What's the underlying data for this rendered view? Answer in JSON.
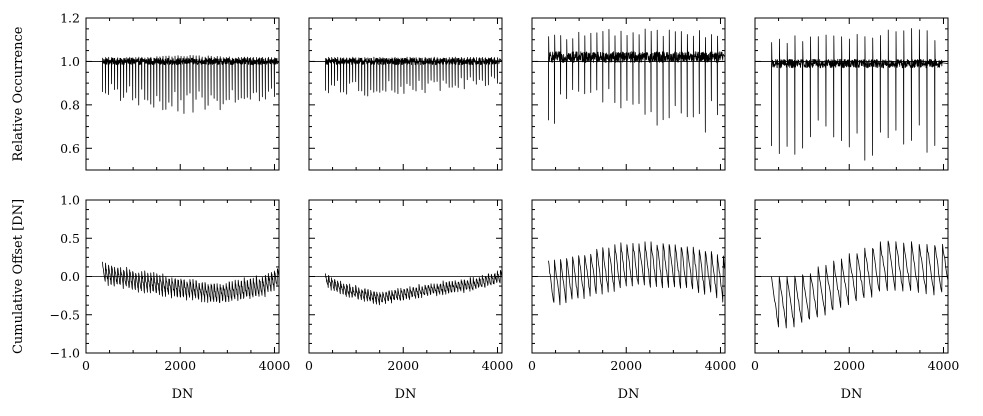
{
  "chart_data": [
    {
      "type": "line",
      "row": 0,
      "col": 0,
      "ylabel": "Relative Occurrence",
      "xlabel": "",
      "xlim": [
        0,
        4096
      ],
      "ylim": [
        0.5,
        1.2
      ],
      "xticks": [
        0,
        2000,
        4000
      ],
      "xticklabels": [],
      "yticks": [
        0.6,
        0.8,
        1.0,
        1.2
      ],
      "yticklabels": [
        "0.6",
        "0.8",
        "1.0",
        "1.2"
      ],
      "reference_y": 1.0,
      "series": [
        {
          "x_start": 350,
          "x_end": 4096,
          "period": 64,
          "baseline": 1.0,
          "noise": 0.015,
          "dip_min": [
            0.84,
            0.79,
            0.75,
            0.79,
            0.84
          ],
          "spike_max": [
            1.02,
            1.02,
            1.03,
            1.02,
            1.02
          ]
        }
      ]
    },
    {
      "type": "line",
      "row": 0,
      "col": 1,
      "ylabel": "",
      "xlabel": "",
      "xlim": [
        0,
        4096
      ],
      "ylim": [
        0.5,
        1.2
      ],
      "xticks": [
        0,
        2000,
        4000
      ],
      "xticklabels": [],
      "yticks": [
        0.6,
        0.8,
        1.0,
        1.2
      ],
      "yticklabels": [],
      "reference_y": 1.0,
      "series": [
        {
          "x_start": 350,
          "x_end": 4096,
          "period": 64,
          "baseline": 1.0,
          "noise": 0.015,
          "dip_min": [
            0.85,
            0.84,
            0.85,
            0.87,
            0.88
          ],
          "spike_max": [
            1.02,
            1.02,
            1.02,
            1.02,
            1.02
          ]
        }
      ]
    },
    {
      "type": "line",
      "row": 0,
      "col": 2,
      "ylabel": "",
      "xlabel": "",
      "xlim": [
        0,
        4096
      ],
      "ylim": [
        0.5,
        1.2
      ],
      "xticks": [
        0,
        2000,
        4000
      ],
      "xticklabels": [],
      "yticks": [
        0.6,
        0.8,
        1.0,
        1.2
      ],
      "yticklabels": [],
      "reference_y": 1.0,
      "series": [
        {
          "x_start": 350,
          "x_end": 4096,
          "period": 128,
          "baseline": 1.02,
          "noise": 0.025,
          "dip_min": [
            0.7,
            0.8,
            0.75,
            0.65,
            0.68
          ],
          "spike_max": [
            1.12,
            1.15,
            1.15,
            1.15,
            1.14
          ]
        }
      ]
    },
    {
      "type": "line",
      "row": 0,
      "col": 3,
      "ylabel": "",
      "xlabel": "",
      "xlim": [
        0,
        4096
      ],
      "ylim": [
        0.5,
        1.2
      ],
      "xticks": [
        0,
        2000,
        4000
      ],
      "xticklabels": [],
      "yticks": [
        0.6,
        0.8,
        1.0,
        1.2
      ],
      "yticklabels": [],
      "reference_y": 1.0,
      "series": [
        {
          "x_start": 350,
          "x_end": 4096,
          "period": 165,
          "baseline": 0.99,
          "noise": 0.02,
          "dip_min": [
            0.58,
            0.54,
            0.53,
            0.55,
            0.6
          ],
          "spike_max": [
            1.1,
            1.15,
            1.15,
            1.17,
            1.12
          ]
        }
      ]
    },
    {
      "type": "line",
      "row": 1,
      "col": 0,
      "ylabel": "Cumulative Offset [DN]",
      "xlabel": "DN",
      "xlim": [
        0,
        4096
      ],
      "ylim": [
        -1.0,
        1.0
      ],
      "xticks": [
        0,
        2000,
        4000
      ],
      "xticklabels": [
        "0",
        "2000",
        "4000"
      ],
      "yticks": [
        -1.0,
        -0.5,
        0.0,
        0.5,
        1.0
      ],
      "yticklabels": [
        "−1.0",
        "−0.5",
        "0.0",
        "0.5",
        "1.0"
      ],
      "reference_y": 0.0,
      "series": [
        {
          "x_start": 350,
          "x_end": 4096,
          "period": 64,
          "noise": 0.03,
          "trend_x": [
            350,
            1000,
            2000,
            2800,
            3800,
            4096
          ],
          "trend_y": [
            0.05,
            -0.05,
            -0.15,
            -0.22,
            -0.12,
            0.0
          ],
          "amplitude": 0.12
        }
      ]
    },
    {
      "type": "line",
      "row": 1,
      "col": 1,
      "ylabel": "",
      "xlabel": "DN",
      "xlim": [
        0,
        4096
      ],
      "ylim": [
        -1.0,
        1.0
      ],
      "xticks": [
        0,
        2000,
        4000
      ],
      "xticklabels": [
        "0",
        "2000",
        "4000"
      ],
      "yticks": [
        -1.0,
        -0.5,
        0.0,
        0.5,
        1.0
      ],
      "yticklabels": [],
      "reference_y": 0.0,
      "series": [
        {
          "x_start": 350,
          "x_end": 4096,
          "period": 64,
          "noise": 0.025,
          "trend_x": [
            350,
            800,
            1500,
            2500,
            3500,
            4096
          ],
          "trend_y": [
            -0.05,
            -0.18,
            -0.28,
            -0.18,
            -0.1,
            0.0
          ],
          "amplitude": 0.07
        }
      ]
    },
    {
      "type": "line",
      "row": 1,
      "col": 2,
      "ylabel": "",
      "xlabel": "DN",
      "xlim": [
        0,
        4096
      ],
      "ylim": [
        -1.0,
        1.0
      ],
      "xticks": [
        0,
        2000,
        4000
      ],
      "xticklabels": [
        "0",
        "2000",
        "4000"
      ],
      "yticks": [
        -1.0,
        -0.5,
        0.0,
        0.5,
        1.0
      ],
      "yticklabels": [],
      "reference_y": 0.0,
      "series": [
        {
          "x_start": 350,
          "x_end": 4096,
          "period": 128,
          "noise": 0.03,
          "trend_x": [
            350,
            1000,
            2000,
            3000,
            3800,
            4096
          ],
          "trend_y": [
            -0.1,
            0.0,
            0.15,
            0.15,
            0.05,
            -0.05
          ],
          "amplitude": 0.28
        }
      ]
    },
    {
      "type": "line",
      "row": 1,
      "col": 3,
      "ylabel": "",
      "xlabel": "DN",
      "xlim": [
        0,
        4096
      ],
      "ylim": [
        -1.0,
        1.0
      ],
      "xticks": [
        0,
        2000,
        4000
      ],
      "xticklabels": [
        "0",
        "2000",
        "4000"
      ],
      "yticks": [
        -1.0,
        -0.5,
        0.0,
        0.5,
        1.0
      ],
      "yticklabels": [],
      "reference_y": 0.0,
      "series": [
        {
          "x_start": 350,
          "x_end": 4096,
          "period": 165,
          "noise": 0.03,
          "trend_x": [
            350,
            1000,
            2000,
            2800,
            3500,
            4096
          ],
          "trend_y": [
            -0.35,
            -0.3,
            -0.05,
            0.15,
            0.1,
            0.1
          ],
          "amplitude": 0.32
        }
      ]
    }
  ]
}
